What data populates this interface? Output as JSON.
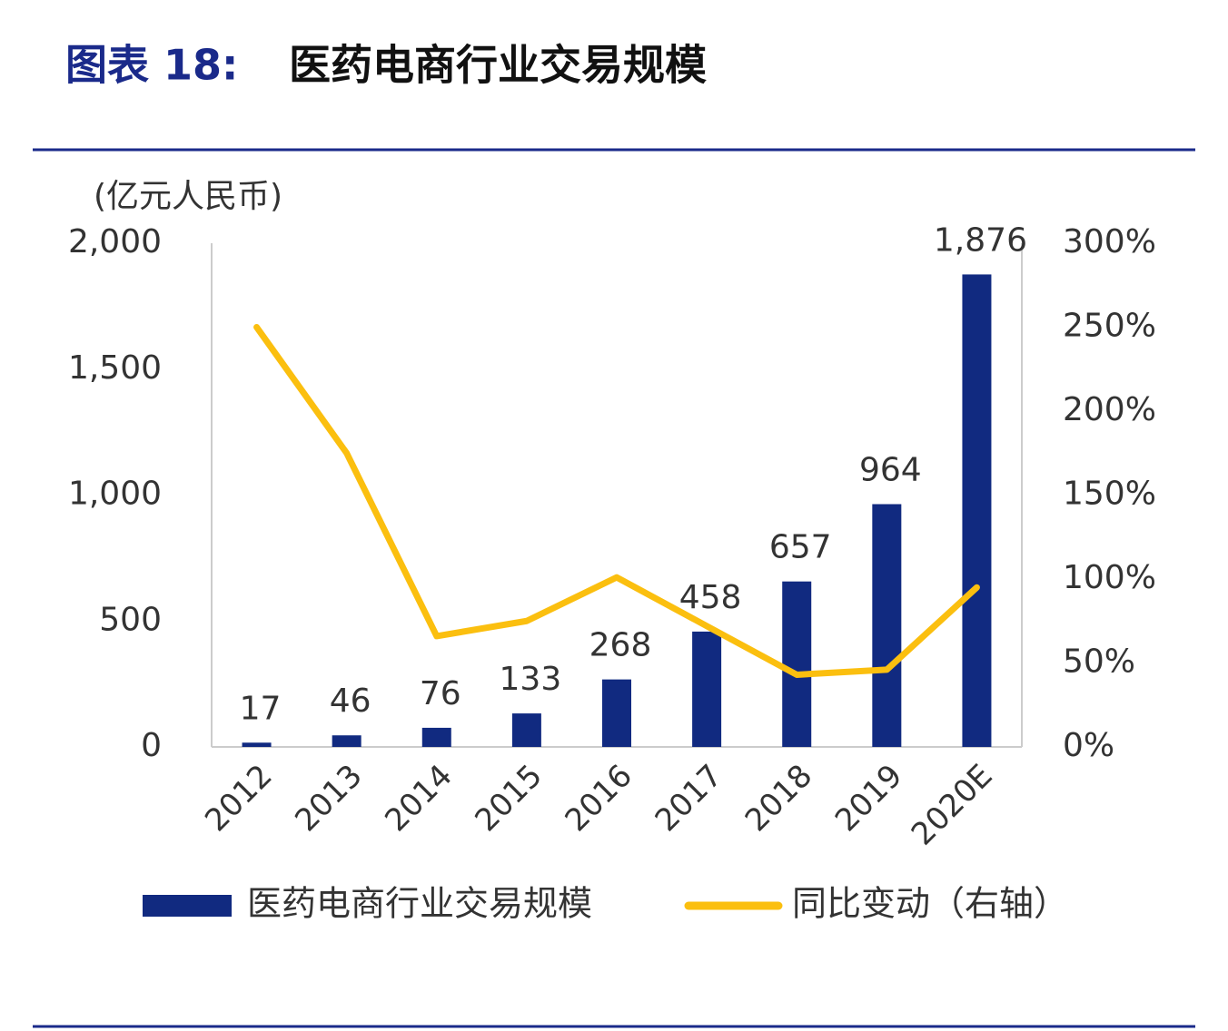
{
  "chart_data": {
    "type": "bar_line",
    "title_label": "图表 18:",
    "title": "医药电商行业交易规模",
    "y_label": "(亿元人民币)",
    "categories": [
      "2012",
      "2013",
      "2014",
      "2015",
      "2016",
      "2017",
      "2018",
      "2019",
      "2020E"
    ],
    "series": [
      {
        "name": "医药电商行业交易规模",
        "type": "bar",
        "color": "#112a80",
        "values": [
          17,
          46,
          76,
          133,
          268,
          458,
          657,
          964,
          1876
        ],
        "value_labels": [
          "17",
          "46",
          "76",
          "133",
          "268",
          "458",
          "657",
          "964",
          "1,876"
        ]
      },
      {
        "name": "同比变动（右轴）",
        "type": "line",
        "axis": "y2",
        "color": "#fbbf0f",
        "values": [
          250,
          175,
          66,
          75,
          101,
          72,
          43,
          46,
          95
        ]
      }
    ],
    "ylim": [
      0,
      2000
    ],
    "yticks": [
      0,
      500,
      {
        "value": 1000,
        "label": "1,000"
      },
      {
        "value": 1500,
        "label": "1,500"
      },
      {
        "value": 2000,
        "label": "2,000"
      }
    ],
    "y2lim": [
      0,
      300
    ],
    "y2ticks": [
      {
        "value": 0,
        "label": "0%"
      },
      {
        "value": 50,
        "label": "50%"
      },
      {
        "value": 100,
        "label": "100%"
      },
      {
        "value": 150,
        "label": "150%"
      },
      {
        "value": 200,
        "label": "200%"
      },
      {
        "value": 250,
        "label": "250%"
      },
      {
        "value": 300,
        "label": "300%"
      }
    ],
    "grid": false
  }
}
